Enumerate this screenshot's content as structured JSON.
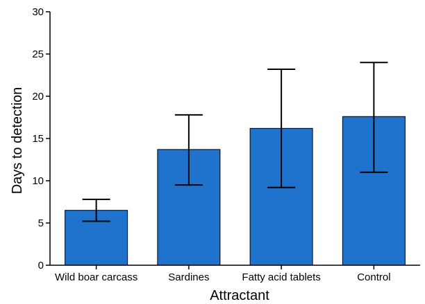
{
  "chart_data": {
    "type": "bar",
    "title": "",
    "xlabel": "Attractant",
    "ylabel": "Days to detection",
    "ylim": [
      0,
      30
    ],
    "yticks": [
      0,
      5,
      10,
      15,
      20,
      25,
      30
    ],
    "grid": false,
    "bar_color": "#1f73cc",
    "categories": [
      "Wild boar carcass",
      "Sardines",
      "Fatty acid tablets",
      "Control"
    ],
    "values": [
      6.5,
      13.7,
      16.2,
      17.6
    ],
    "error_low": [
      5.2,
      9.5,
      9.2,
      11.0
    ],
    "error_high": [
      7.8,
      17.8,
      23.2,
      24.0
    ]
  }
}
